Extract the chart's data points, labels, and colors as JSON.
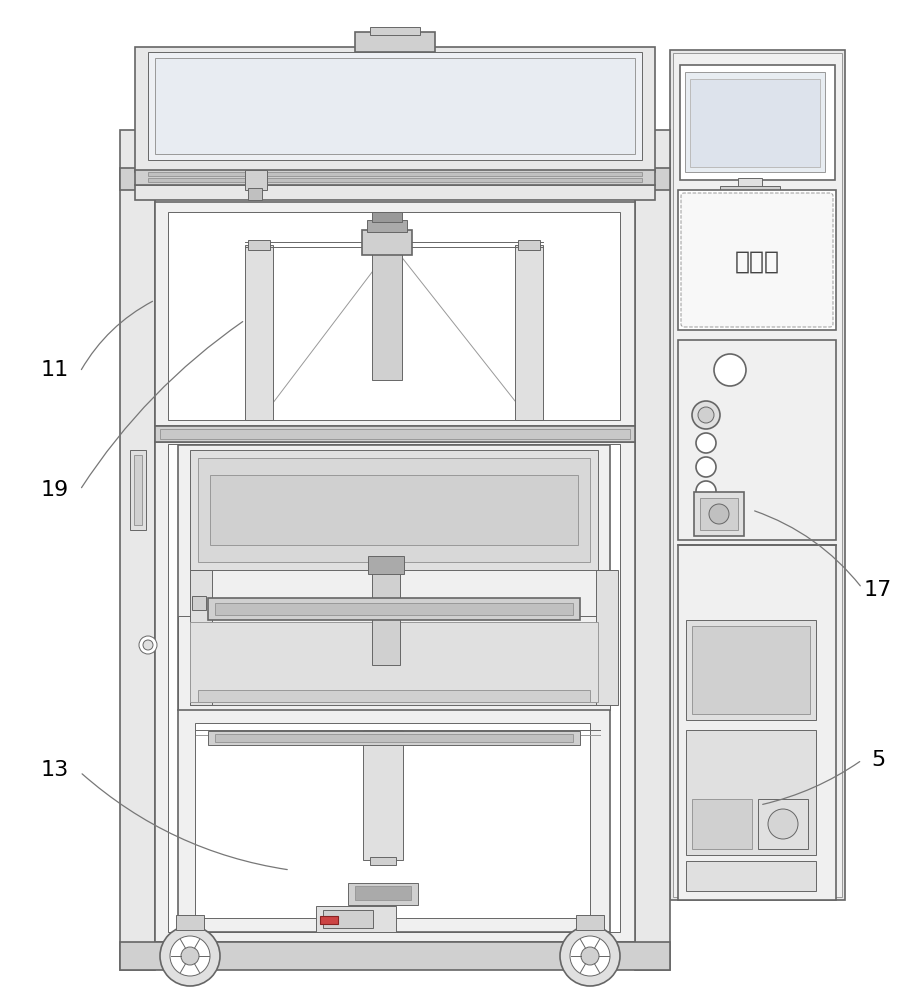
{
  "bg_color": "#ffffff",
  "lc": "#666666",
  "lc_dark": "#444444",
  "lc_light": "#999999",
  "lc_vlight": "#bbbbbb",
  "fill_bg": "#f0f0f0",
  "fill_white": "#ffffff",
  "fill_panel": "#e8e8e8",
  "fill_dark": "#d0d0d0",
  "fill_mid": "#e0e0e0",
  "touch_text": "触摸屏",
  "label_fontsize": 16,
  "touch_fontsize": 18,
  "lw_main": 1.2,
  "lw_thin": 0.7,
  "lw_med": 0.9
}
